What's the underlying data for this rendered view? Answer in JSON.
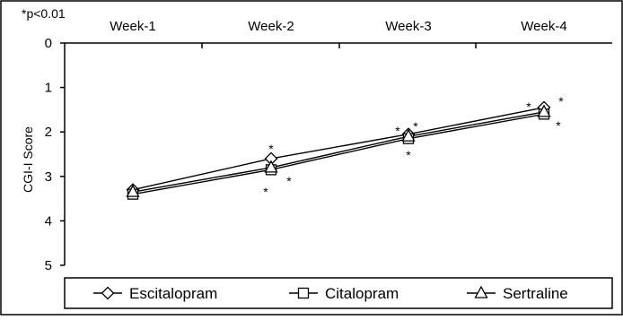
{
  "chart_data": {
    "type": "line",
    "note": "*p<0.01",
    "categories": [
      "Week-1",
      "Week-2",
      "Week-3",
      "Week-4"
    ],
    "ylabel": "CGI-I Score",
    "ylim": [
      0,
      5
    ],
    "y_inverted": true,
    "yticks": [
      "0",
      "1",
      "2",
      "3",
      "4",
      "5"
    ],
    "legend_position": "bottom",
    "significance_marker": "*",
    "series": [
      {
        "name": "Escitalopram",
        "marker": "diamond",
        "values": [
          3.3,
          2.6,
          2.05,
          1.45
        ]
      },
      {
        "name": "Citalopram",
        "marker": "square",
        "values": [
          3.4,
          2.85,
          2.15,
          1.6
        ]
      },
      {
        "name": "Sertraline",
        "marker": "triangle",
        "values": [
          3.35,
          2.8,
          2.1,
          1.55
        ]
      }
    ],
    "line_color": "#000000"
  }
}
